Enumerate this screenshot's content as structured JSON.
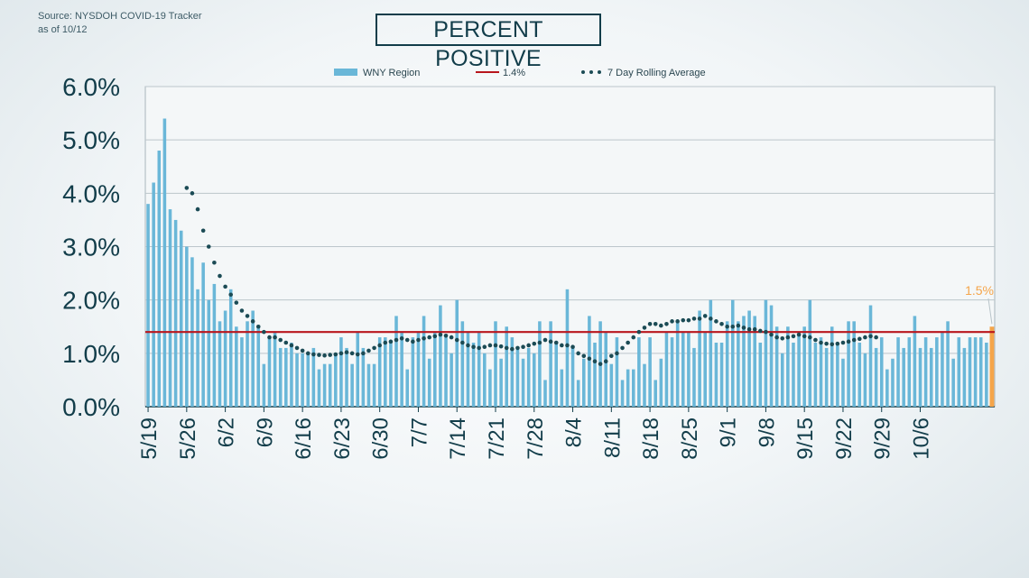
{
  "source": {
    "line1": "Source: NYSDOH COVID-19 Tracker",
    "line2": "as of 10/12"
  },
  "title": "PERCENT POSITIVE",
  "colors": {
    "bar": "#6ab7d8",
    "highlight": "#f5a54a",
    "reference": "#b8161d",
    "average": "#1b4b55",
    "axis": "#123d4a",
    "grid": "#bcc6cb"
  },
  "chart_data": {
    "type": "bar",
    "title": "PERCENT POSITIVE",
    "xlabel": "",
    "ylabel": "",
    "ylim": [
      0,
      6
    ],
    "yticks": [
      "0.0%",
      "1.0%",
      "2.0%",
      "3.0%",
      "4.0%",
      "5.0%",
      "6.0%"
    ],
    "x_tick_labels": [
      "5/19",
      "5/26",
      "6/2",
      "6/9",
      "6/16",
      "6/23",
      "6/30",
      "7/7",
      "7/14",
      "7/21",
      "7/28",
      "8/4",
      "8/11",
      "8/18",
      "8/25",
      "9/1",
      "9/8",
      "9/15",
      "9/22",
      "9/29",
      "10/6"
    ],
    "x_tick_every": 7,
    "legend": {
      "bars": "WNY Region",
      "reference": "1.4%",
      "average": "7 Day Rolling Average"
    },
    "reference_line": 1.4,
    "highlight_label": "1.5%",
    "series": [
      {
        "name": "WNY Region",
        "type": "bar",
        "values": [
          3.8,
          4.2,
          4.8,
          5.4,
          3.7,
          3.5,
          3.3,
          3.0,
          2.8,
          2.2,
          2.7,
          2.0,
          2.3,
          1.6,
          1.8,
          2.2,
          1.5,
          1.3,
          1.6,
          1.8,
          1.5,
          0.8,
          1.3,
          1.4,
          1.1,
          1.1,
          1.2,
          1.0,
          1.0,
          1.0,
          1.1,
          0.7,
          0.8,
          0.8,
          1.0,
          1.3,
          1.1,
          0.8,
          1.4,
          1.1,
          0.8,
          0.8,
          1.3,
          1.3,
          1.2,
          1.7,
          1.4,
          0.7,
          1.3,
          1.4,
          1.7,
          0.9,
          1.4,
          1.9,
          1.3,
          1.0,
          2.0,
          1.6,
          1.4,
          1.2,
          1.4,
          1.0,
          0.7,
          1.6,
          0.9,
          1.5,
          1.3,
          1.1,
          0.9,
          1.1,
          1.0,
          1.6,
          0.5,
          1.6,
          1.2,
          0.7,
          2.2,
          1.1,
          0.5,
          0.9,
          1.7,
          1.2,
          1.6,
          1.4,
          0.8,
          1.3,
          0.5,
          0.7,
          0.7,
          1.3,
          0.8,
          1.3,
          0.5,
          0.9,
          1.4,
          1.3,
          1.6,
          1.4,
          1.4,
          1.1,
          1.8,
          1.4,
          2.0,
          1.2,
          1.2,
          1.6,
          2.0,
          1.6,
          1.7,
          1.8,
          1.7,
          1.2,
          2.0,
          1.9,
          1.5,
          1.0,
          1.5,
          1.2,
          1.4,
          1.5,
          2.0,
          1.2,
          1.3,
          1.1,
          1.5,
          1.2,
          0.9,
          1.6,
          1.6,
          1.2,
          1.0,
          1.9,
          1.1,
          1.3,
          0.7,
          0.9,
          1.3,
          1.1,
          1.3,
          1.7,
          1.1,
          1.3,
          1.1,
          1.3,
          1.4,
          1.6,
          0.9,
          1.3,
          1.1,
          1.3,
          1.3,
          1.3,
          1.2,
          1.5
        ]
      },
      {
        "name": "7 Day Rolling Average",
        "type": "line",
        "start_index": 7,
        "values": [
          4.1,
          4.0,
          3.7,
          3.3,
          3.0,
          2.7,
          2.45,
          2.25,
          2.1,
          1.95,
          1.8,
          1.7,
          1.6,
          1.5,
          1.4,
          1.3,
          1.3,
          1.25,
          1.2,
          1.15,
          1.1,
          1.05,
          1.0,
          0.98,
          0.97,
          0.96,
          0.97,
          0.98,
          1.0,
          1.02,
          1.0,
          0.98,
          1.0,
          1.05,
          1.1,
          1.15,
          1.2,
          1.22,
          1.25,
          1.28,
          1.25,
          1.22,
          1.25,
          1.28,
          1.3,
          1.32,
          1.35,
          1.33,
          1.3,
          1.25,
          1.2,
          1.15,
          1.12,
          1.1,
          1.12,
          1.15,
          1.15,
          1.13,
          1.1,
          1.08,
          1.1,
          1.12,
          1.15,
          1.18,
          1.2,
          1.25,
          1.22,
          1.2,
          1.15,
          1.15,
          1.12,
          1.0,
          0.95,
          0.9,
          0.85,
          0.8,
          0.85,
          0.95,
          1.0,
          1.1,
          1.2,
          1.3,
          1.4,
          1.48,
          1.55,
          1.55,
          1.52,
          1.55,
          1.6,
          1.6,
          1.62,
          1.62,
          1.65,
          1.65,
          1.7,
          1.65,
          1.6,
          1.55,
          1.5,
          1.5,
          1.52,
          1.48,
          1.45,
          1.45,
          1.42,
          1.4,
          1.35,
          1.3,
          1.28,
          1.3,
          1.32,
          1.35,
          1.32,
          1.3,
          1.25,
          1.2,
          1.18,
          1.17,
          1.18,
          1.2,
          1.22,
          1.25,
          1.27,
          1.3,
          1.32,
          1.3
        ]
      }
    ]
  }
}
